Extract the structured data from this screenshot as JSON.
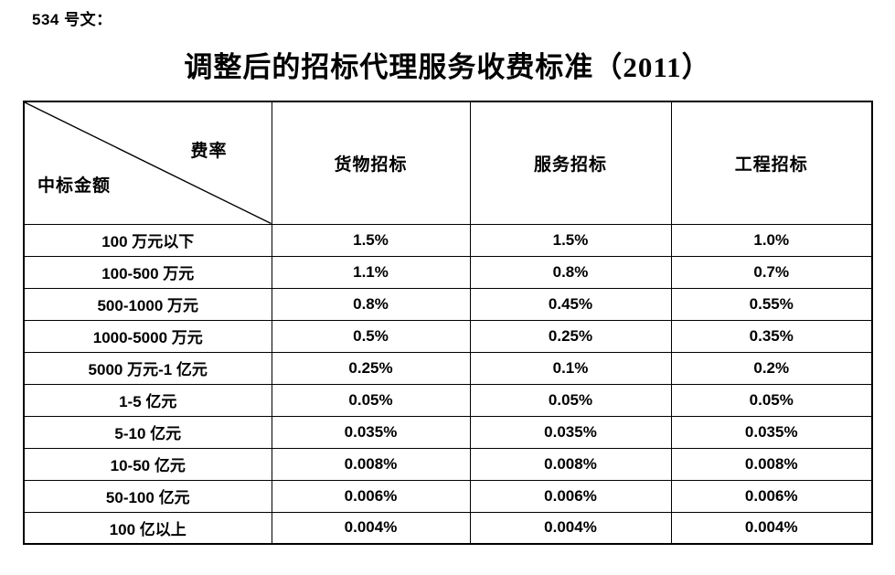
{
  "page": {
    "doc_label": "534 号文：",
    "title": "调整后的招标代理服务收费标准（2011）"
  },
  "table": {
    "corner": {
      "top_right": "费率",
      "bottom_left": "中标金额"
    },
    "columns": [
      "货物招标",
      "服务招标",
      "工程招标"
    ],
    "rows": [
      {
        "label": "100 万元以下",
        "values": [
          "1.5%",
          "1.5%",
          "1.0%"
        ]
      },
      {
        "label": "100-500 万元",
        "values": [
          "1.1%",
          "0.8%",
          "0.7%"
        ]
      },
      {
        "label": "500-1000 万元",
        "values": [
          "0.8%",
          "0.45%",
          "0.55%"
        ]
      },
      {
        "label": "1000-5000 万元",
        "values": [
          "0.5%",
          "0.25%",
          "0.35%"
        ]
      },
      {
        "label": "5000 万元-1 亿元",
        "values": [
          "0.25%",
          "0.1%",
          "0.2%"
        ]
      },
      {
        "label": "1-5 亿元",
        "values": [
          "0.05%",
          "0.05%",
          "0.05%"
        ]
      },
      {
        "label": "5-10 亿元",
        "values": [
          "0.035%",
          "0.035%",
          "0.035%"
        ]
      },
      {
        "label": "10-50 亿元",
        "values": [
          "0.008%",
          "0.008%",
          "0.008%"
        ]
      },
      {
        "label": "50-100 亿元",
        "values": [
          "0.006%",
          "0.006%",
          "0.006%"
        ]
      },
      {
        "label": "100 亿以上",
        "values": [
          "0.004%",
          "0.004%",
          "0.004%"
        ]
      }
    ]
  },
  "colors": {
    "text": "#000000",
    "border": "#000000",
    "background": "#ffffff"
  }
}
